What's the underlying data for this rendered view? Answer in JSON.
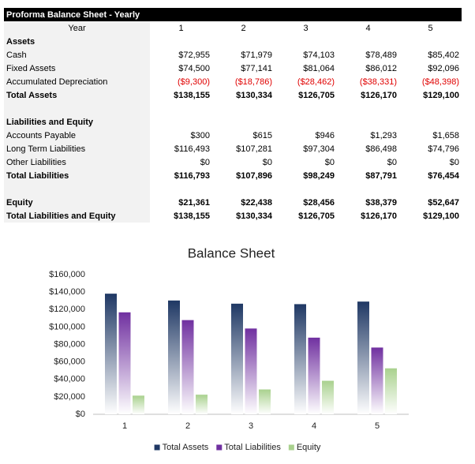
{
  "table": {
    "title": "Proforma Balance Sheet - Yearly",
    "header": [
      "Year",
      "1",
      "2",
      "3",
      "4",
      "5"
    ],
    "sections": [
      {
        "title": "Assets",
        "rows": [
          [
            "Cash",
            "$72,955",
            "$71,979",
            "$74,103",
            "$78,489",
            "$85,402"
          ],
          [
            "Fixed Assets",
            "$74,500",
            "$77,141",
            "$81,064",
            "$86,012",
            "$92,096"
          ],
          [
            "Accumulated Depreciation",
            "($9,300)",
            "($18,786)",
            "($28,462)",
            "($38,331)",
            "($48,398)"
          ]
        ],
        "totals": [
          [
            "Total Assets",
            "$138,155",
            "$130,334",
            "$126,705",
            "$126,170",
            "$129,100"
          ]
        ]
      },
      {
        "title": "Liabilities and Equity",
        "rows": [
          [
            "Accounts Payable",
            "$300",
            "$615",
            "$946",
            "$1,293",
            "$1,658"
          ],
          [
            "Long Term Liabilities",
            "$116,493",
            "$107,281",
            "$97,304",
            "$86,498",
            "$74,796"
          ],
          [
            "Other Liabilities",
            "$0",
            "$0",
            "$0",
            "$0",
            "$0"
          ]
        ],
        "totals": [
          [
            "Total Liabilities",
            "$116,793",
            "$107,896",
            "$98,249",
            "$87,791",
            "$76,454"
          ]
        ]
      },
      {
        "totals": [
          [
            "Equity",
            "$21,361",
            "$22,438",
            "$28,456",
            "$38,379",
            "$52,647"
          ],
          [
            "Total Liabilities and Equity",
            "$138,155",
            "$130,334",
            "$126,705",
            "$126,170",
            "$129,100"
          ]
        ]
      }
    ]
  },
  "chart_data": {
    "type": "bar",
    "title": "Balance Sheet",
    "categories": [
      "1",
      "2",
      "3",
      "4",
      "5"
    ],
    "series": [
      {
        "name": "Total Assets",
        "color": "#1f3864",
        "values": [
          138155,
          130334,
          126705,
          126170,
          129100
        ]
      },
      {
        "name": "Total Liabilities",
        "color": "#7030a0",
        "values": [
          116793,
          107896,
          98249,
          87791,
          76454
        ]
      },
      {
        "name": "Equity",
        "color": "#a9d18e",
        "values": [
          21361,
          22438,
          28456,
          38379,
          52647
        ]
      }
    ],
    "ylim": [
      0,
      160000
    ],
    "yticks": [
      {
        "value": 0,
        "label": "$0"
      },
      {
        "value": 20000,
        "label": "$20,000"
      },
      {
        "value": 40000,
        "label": "$40,000"
      },
      {
        "value": 60000,
        "label": "$60,000"
      },
      {
        "value": 80000,
        "label": "$80,000"
      },
      {
        "value": 100000,
        "label": "$100,000"
      },
      {
        "value": 120000,
        "label": "$120,000"
      },
      {
        "value": 140000,
        "label": "$140,000"
      },
      {
        "value": 160000,
        "label": "$160,000"
      }
    ],
    "legend": "bottom"
  }
}
